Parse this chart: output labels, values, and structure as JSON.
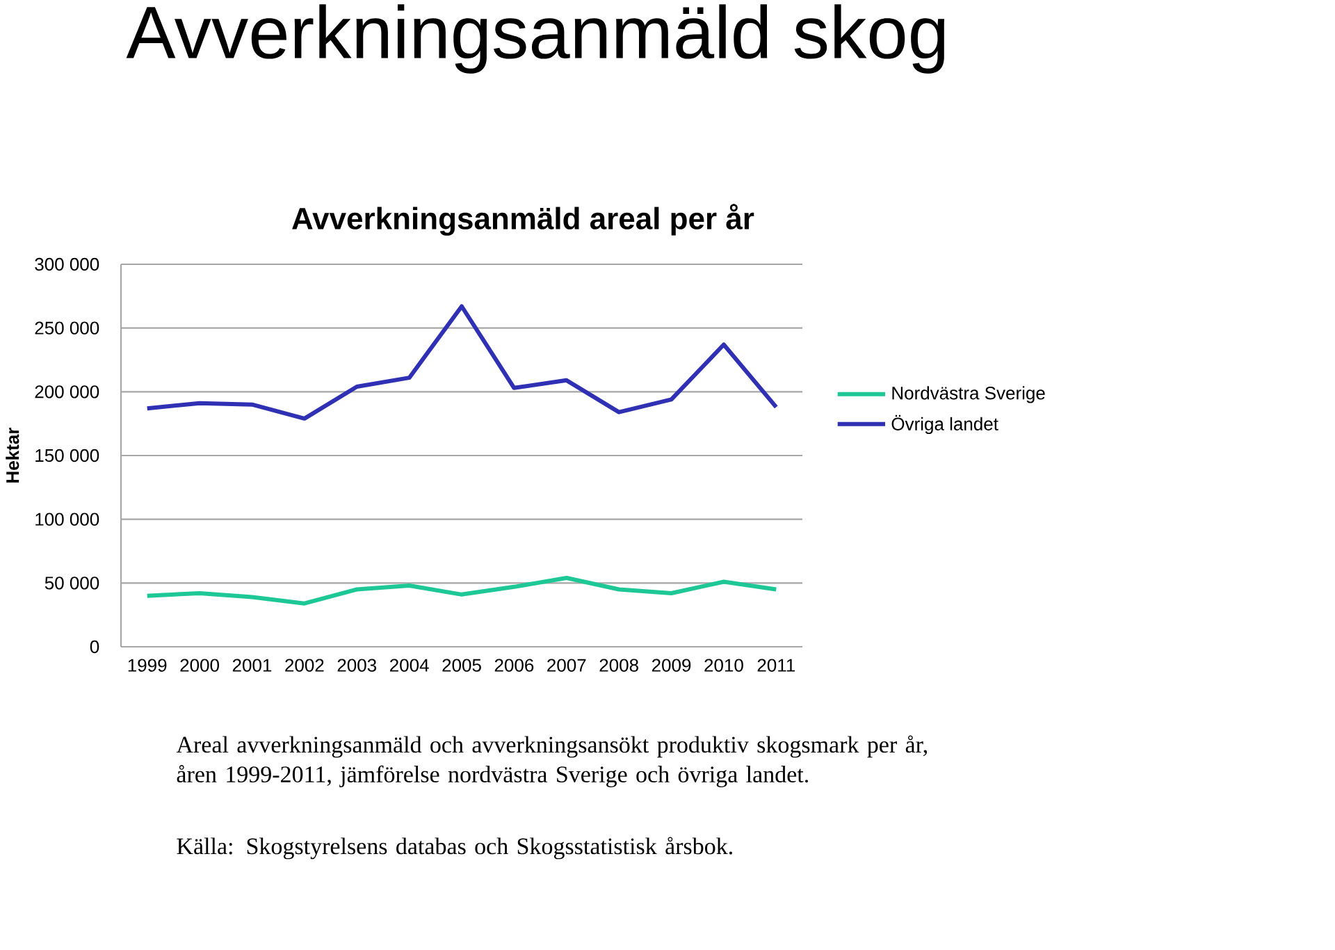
{
  "chart_data": {
    "type": "line",
    "title": "Avverkningsanmäld skog",
    "subtitle": "Avverkningsanmäld areal per år",
    "ylabel": "Hektar",
    "categories": [
      "1999",
      "2000",
      "2001",
      "2002",
      "2003",
      "2004",
      "2005",
      "2006",
      "2007",
      "2008",
      "2009",
      "2010",
      "2011"
    ],
    "series": [
      {
        "name": "Nordvästra Sverige",
        "color": "#1ec896",
        "values": [
          40000,
          42000,
          39000,
          34000,
          45000,
          48000,
          41000,
          47000,
          54000,
          45000,
          42000,
          51000,
          45000
        ]
      },
      {
        "name": "Övriga landet",
        "color": "#3030b4",
        "values": [
          187000,
          191000,
          190000,
          179000,
          204000,
          211000,
          267000,
          203000,
          209000,
          184000,
          194000,
          237000,
          188000
        ]
      }
    ],
    "ylim": [
      0,
      300000
    ],
    "yticks": [
      {
        "value": 0,
        "label": "0"
      },
      {
        "value": 50000,
        "label": "50 000"
      },
      {
        "value": 100000,
        "label": "100 000"
      },
      {
        "value": 150000,
        "label": "150 000"
      },
      {
        "value": 200000,
        "label": "200 000"
      },
      {
        "value": 250000,
        "label": "250 000"
      },
      {
        "value": 300000,
        "label": "300 000"
      }
    ],
    "grid": "y",
    "legend": "right",
    "marker": "none",
    "line_style": "solid",
    "annotations": [
      "Areal avverkningsanmäld och avverkningsansökt produktiv skogsmark per år, åren 1999-2011, jämförelse nordvästra Sverige och övriga landet.",
      "Källa: Skogstyrelsens databas och Skogsstatistisk årsbok."
    ]
  }
}
